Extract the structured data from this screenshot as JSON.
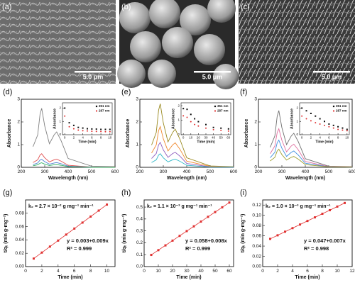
{
  "images": [
    {
      "label": "(a)",
      "scale": "5.0 μm"
    },
    {
      "label": "(b)",
      "scale": "5.0 μm"
    },
    {
      "label": "(c)",
      "scale": "5.0 μm"
    }
  ],
  "chart_data": [
    {
      "type": "line",
      "label": "(d)",
      "xlabel": "Wavelength (nm)",
      "ylabel": "Absorbance",
      "xlim": [
        200,
        600
      ],
      "xticks": [
        200,
        300,
        400,
        500,
        600
      ],
      "ylim": [
        0,
        3
      ],
      "yticks": [
        0,
        1,
        2,
        3
      ],
      "x": [
        250,
        270,
        280,
        287,
        300,
        320,
        340,
        351,
        370,
        400,
        500,
        600
      ],
      "series": [
        {
          "color": "#808080",
          "values": [
            0.91,
            1.43,
            2.34,
            2.6,
            1.82,
            1.04,
            1.43,
            1.56,
            1.17,
            0.39,
            0.05,
            0.03
          ]
        },
        {
          "color": "#e05050",
          "values": [
            0.21,
            0.33,
            0.54,
            0.6,
            0.42,
            0.24,
            0.33,
            0.36,
            0.27,
            0.09,
            0.01,
            0.01
          ]
        },
        {
          "color": "#4f7fd0",
          "values": [
            0.12,
            0.19,
            0.32,
            0.35,
            0.25,
            0.14,
            0.19,
            0.21,
            0.16,
            0.05,
            0.01,
            0
          ]
        },
        {
          "color": "#30b060",
          "values": [
            0.07,
            0.11,
            0.18,
            0.2,
            0.14,
            0.08,
            0.11,
            0.12,
            0.09,
            0.03,
            0,
            0
          ]
        }
      ]
    },
    {
      "type": "scatter",
      "xlabel": "Time (min)",
      "ylabel": "Absorbance",
      "xlim": [
        -0.5,
        10.5
      ],
      "xticks": [
        0,
        2,
        4,
        6,
        8,
        10
      ],
      "ylim": [
        0,
        2.4
      ],
      "yticks": [
        0,
        1,
        2
      ],
      "x": [
        0,
        1,
        2,
        3,
        4,
        5,
        6,
        7,
        8,
        9,
        10
      ],
      "series": [
        {
          "name": "351 nm",
          "color": "#111111",
          "marker": "square",
          "values": [
            2.0,
            0.9,
            0.7,
            0.55,
            0.5,
            0.45,
            0.43,
            0.42,
            0.4,
            0.4,
            0.4
          ]
        },
        {
          "name": "287 nm",
          "color": "#e03030",
          "marker": "circle",
          "values": [
            1.4,
            0.6,
            0.45,
            0.35,
            0.3,
            0.28,
            0.26,
            0.25,
            0.24,
            0.23,
            0.23
          ]
        }
      ]
    },
    {
      "type": "line",
      "label": "(e)",
      "xlabel": "Wavelength (nm)",
      "ylabel": "Absorbance",
      "xlim": [
        200,
        600
      ],
      "xticks": [
        200,
        300,
        400,
        500,
        600
      ],
      "ylim": [
        0,
        3
      ],
      "yticks": [
        0,
        1,
        2,
        3
      ],
      "x": [
        250,
        270,
        280,
        287,
        300,
        320,
        340,
        351,
        370,
        400,
        500,
        600
      ],
      "series": [
        {
          "color": "#9a8a20",
          "values": [
            0.98,
            1.54,
            2.52,
            2.8,
            1.96,
            1.12,
            1.54,
            1.68,
            1.26,
            0.42,
            0.06,
            0.03
          ]
        },
        {
          "color": "#f08a30",
          "values": [
            0.63,
            0.99,
            1.62,
            1.8,
            1.26,
            0.72,
            0.99,
            1.08,
            0.81,
            0.27,
            0.04,
            0.02
          ]
        },
        {
          "color": "#9060c0",
          "values": [
            0.39,
            0.61,
            0.99,
            1.1,
            0.77,
            0.44,
            0.61,
            0.66,
            0.5,
            0.17,
            0.02,
            0.01
          ]
        },
        {
          "color": "#30b8c8",
          "values": [
            0.21,
            0.33,
            0.54,
            0.6,
            0.42,
            0.24,
            0.33,
            0.36,
            0.27,
            0.09,
            0.01,
            0.01
          ]
        }
      ]
    },
    {
      "type": "scatter",
      "xlabel": "Time (min)",
      "ylabel": "Absorbance",
      "xlim": [
        -3,
        63
      ],
      "xticks": [
        0,
        10,
        20,
        30,
        40,
        50,
        60
      ],
      "ylim": [
        0,
        2.2
      ],
      "yticks": [
        0,
        1,
        2
      ],
      "x": [
        0,
        5,
        10,
        15,
        20,
        30,
        40,
        50,
        60
      ],
      "series": [
        {
          "name": "351 nm",
          "color": "#111111",
          "marker": "square",
          "values": [
            1.8,
            1.75,
            1.4,
            1.1,
            0.9,
            0.7,
            0.5,
            0.45,
            0.4
          ]
        },
        {
          "name": "287 nm",
          "color": "#e03030",
          "marker": "circle",
          "values": [
            1.3,
            1.2,
            0.9,
            0.7,
            0.6,
            0.45,
            0.35,
            0.3,
            0.25
          ]
        }
      ]
    },
    {
      "type": "line",
      "label": "(f)",
      "xlabel": "Wavelength (nm)",
      "ylabel": "Absorbance",
      "xlim": [
        200,
        600
      ],
      "xticks": [
        200,
        300,
        400,
        500,
        600
      ],
      "ylim": [
        0,
        3
      ],
      "yticks": [
        0,
        1,
        2,
        3
      ],
      "x": [
        250,
        270,
        280,
        287,
        300,
        320,
        340,
        351,
        370,
        400,
        500,
        600
      ],
      "series": [
        {
          "color": "#707070",
          "values": [
            0.88,
            1.38,
            2.25,
            2.5,
            1.75,
            1,
            1.38,
            1.5,
            1.13,
            0.38,
            0.05,
            0.03
          ]
        },
        {
          "color": "#e070a0",
          "values": [
            0.6,
            0.94,
            1.53,
            1.7,
            1.19,
            0.68,
            0.94,
            1.02,
            0.77,
            0.26,
            0.03,
            0.02
          ]
        },
        {
          "color": "#4090e0",
          "values": [
            0.42,
            0.66,
            1.08,
            1.2,
            0.84,
            0.48,
            0.66,
            0.72,
            0.54,
            0.18,
            0.02,
            0.01
          ]
        },
        {
          "color": "#a0a030",
          "values": [
            0.28,
            0.44,
            0.72,
            0.8,
            0.56,
            0.32,
            0.44,
            0.48,
            0.36,
            0.12,
            0.02,
            0.01
          ]
        }
      ]
    },
    {
      "type": "scatter",
      "xlabel": "Time (min)",
      "ylabel": "Absorbance",
      "xlim": [
        -0.5,
        10.5
      ],
      "xticks": [
        0,
        2,
        4,
        6,
        8,
        10
      ],
      "ylim": [
        0,
        2.4
      ],
      "yticks": [
        0,
        1,
        2
      ],
      "x": [
        0,
        1,
        2,
        3,
        4,
        5,
        6,
        7,
        8,
        9,
        10
      ],
      "series": [
        {
          "name": "351 nm",
          "color": "#111111",
          "marker": "square",
          "values": [
            2.0,
            1.8,
            1.6,
            1.4,
            1.2,
            1.0,
            0.8,
            0.7,
            0.6,
            0.5,
            0.4
          ]
        },
        {
          "name": "287 nm",
          "color": "#e03030",
          "marker": "circle",
          "values": [
            1.4,
            1.2,
            1.05,
            0.9,
            0.8,
            0.7,
            0.6,
            0.5,
            0.4,
            0.35,
            0.3
          ]
        }
      ]
    },
    {
      "type": "scatter",
      "label": "(g)",
      "xlabel": "Time (min)",
      "ylabel": "t/qₜ (min g·mg⁻¹)",
      "xlim": [
        0,
        11
      ],
      "xticks": [
        0,
        2,
        4,
        6,
        8,
        10
      ],
      "ylim": [
        0,
        0.1
      ],
      "yticks": [
        {
          "value": 0,
          "label": "0.00"
        },
        0.02,
        0.04,
        0.06,
        0.08
      ],
      "annotations": [
        "k₂ = 2.7 × 10⁻² g mg⁻¹ min⁻¹",
        "y = 0.003+0.009x",
        "R² = 0.999"
      ],
      "x": [
        1,
        2,
        3,
        4,
        5,
        6,
        7,
        8,
        9,
        10
      ],
      "series": [
        {
          "color": "#e03030",
          "marker": "square",
          "line": true,
          "values": [
            0.012,
            0.021,
            0.03,
            0.039,
            0.048,
            0.057,
            0.066,
            0.075,
            0.084,
            0.093
          ]
        }
      ]
    },
    {
      "type": "scatter",
      "label": "(h)",
      "xlabel": "Time (min)",
      "ylabel": "t/qₜ (min g·mg⁻¹)",
      "xlim": [
        0,
        63
      ],
      "xticks": [
        0,
        10,
        20,
        30,
        40,
        50,
        60
      ],
      "ylim": [
        0,
        0.56
      ],
      "yticks": [
        {
          "value": 0,
          "label": "0.0"
        },
        0.1,
        0.2,
        0.3,
        0.4,
        0.5
      ],
      "annotations": [
        "k₂ = 1.1 × 10⁻³ g mg⁻¹ min⁻¹",
        "y = 0.058+0.008x",
        "R² = 0.999"
      ],
      "x": [
        5,
        10,
        15,
        20,
        25,
        30,
        35,
        40,
        45,
        50,
        55,
        60
      ],
      "series": [
        {
          "color": "#e03030",
          "marker": "square",
          "line": true,
          "values": [
            0.098,
            0.138,
            0.178,
            0.218,
            0.258,
            0.298,
            0.338,
            0.378,
            0.418,
            0.458,
            0.498,
            0.538
          ]
        }
      ]
    },
    {
      "type": "scatter",
      "label": "(i)",
      "xlabel": "Time (min)",
      "ylabel": "t/qₜ (min g·mg⁻¹)",
      "xlim": [
        0,
        12
      ],
      "xticks": [
        0,
        2,
        4,
        6,
        8,
        10,
        12
      ],
      "ylim": [
        0,
        0.13
      ],
      "yticks": [
        {
          "value": 0,
          "label": "0.00"
        },
        0.02,
        0.04,
        0.06,
        0.08,
        {
          "value": 0.1,
          "label": "0.10"
        },
        0.12
      ],
      "annotations": [
        "k₂ = 1.0 × 10⁻³ g mg⁻¹ min⁻¹",
        "y = 0.047+0.007x",
        "R² = 0.998"
      ],
      "x": [
        1,
        2,
        3,
        4,
        5,
        6,
        7,
        8,
        9,
        10,
        11
      ],
      "series": [
        {
          "color": "#e03030",
          "marker": "square",
          "line": true,
          "values": [
            0.054,
            0.061,
            0.068,
            0.075,
            0.082,
            0.089,
            0.096,
            0.103,
            0.11,
            0.117,
            0.124
          ]
        }
      ]
    }
  ]
}
